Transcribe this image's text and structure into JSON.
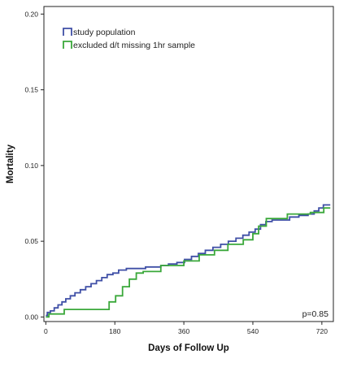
{
  "chart_data": {
    "type": "line",
    "step": true,
    "xlabel": "Days of Follow Up",
    "ylabel": "Mortality",
    "xlim": [
      -5,
      750
    ],
    "ylim": [
      -0.003,
      0.205
    ],
    "x_ticks": [
      {
        "value": 0,
        "label": "0"
      },
      {
        "value": 180,
        "label": "180"
      },
      {
        "value": 360,
        "label": "360"
      },
      {
        "value": 540,
        "label": "540"
      },
      {
        "value": 720,
        "label": "720"
      }
    ],
    "y_ticks": [
      {
        "value": 0.0,
        "label": "0.00"
      },
      {
        "value": 0.05,
        "label": "0.05"
      },
      {
        "value": 0.1,
        "label": "0.10"
      },
      {
        "value": 0.15,
        "label": "0.15"
      },
      {
        "value": 0.2,
        "label": "0.20"
      }
    ],
    "grid": false,
    "legend_position": "top-left",
    "annotation": "p=0.85",
    "series": [
      {
        "name": "study population",
        "color": "#3f4fa6",
        "points": [
          [
            0,
            0.001
          ],
          [
            4,
            0.003
          ],
          [
            12,
            0.004
          ],
          [
            22,
            0.006
          ],
          [
            32,
            0.008
          ],
          [
            42,
            0.01
          ],
          [
            52,
            0.012
          ],
          [
            64,
            0.014
          ],
          [
            76,
            0.016
          ],
          [
            90,
            0.018
          ],
          [
            104,
            0.02
          ],
          [
            118,
            0.022
          ],
          [
            132,
            0.024
          ],
          [
            146,
            0.026
          ],
          [
            160,
            0.028
          ],
          [
            175,
            0.029
          ],
          [
            190,
            0.031
          ],
          [
            210,
            0.032
          ],
          [
            235,
            0.032
          ],
          [
            260,
            0.033
          ],
          [
            282,
            0.033
          ],
          [
            300,
            0.034
          ],
          [
            320,
            0.035
          ],
          [
            342,
            0.036
          ],
          [
            362,
            0.038
          ],
          [
            380,
            0.04
          ],
          [
            398,
            0.042
          ],
          [
            416,
            0.044
          ],
          [
            436,
            0.046
          ],
          [
            456,
            0.048
          ],
          [
            476,
            0.05
          ],
          [
            496,
            0.052
          ],
          [
            514,
            0.054
          ],
          [
            530,
            0.056
          ],
          [
            546,
            0.058
          ],
          [
            560,
            0.061
          ],
          [
            574,
            0.063
          ],
          [
            590,
            0.064
          ],
          [
            612,
            0.064
          ],
          [
            636,
            0.066
          ],
          [
            660,
            0.067
          ],
          [
            684,
            0.068
          ],
          [
            700,
            0.07
          ],
          [
            712,
            0.072
          ],
          [
            724,
            0.074
          ],
          [
            742,
            0.074
          ]
        ]
      },
      {
        "name": "excluded d/t missing 1hr sample",
        "color": "#3aa83a",
        "points": [
          [
            0,
            0.0
          ],
          [
            8,
            0.002
          ],
          [
            28,
            0.002
          ],
          [
            48,
            0.005
          ],
          [
            150,
            0.005
          ],
          [
            165,
            0.01
          ],
          [
            182,
            0.014
          ],
          [
            200,
            0.02
          ],
          [
            218,
            0.025
          ],
          [
            236,
            0.029
          ],
          [
            254,
            0.03
          ],
          [
            285,
            0.03
          ],
          [
            300,
            0.034
          ],
          [
            345,
            0.034
          ],
          [
            360,
            0.037
          ],
          [
            400,
            0.041
          ],
          [
            440,
            0.044
          ],
          [
            475,
            0.048
          ],
          [
            515,
            0.051
          ],
          [
            540,
            0.055
          ],
          [
            555,
            0.06
          ],
          [
            575,
            0.065
          ],
          [
            615,
            0.065
          ],
          [
            630,
            0.068
          ],
          [
            665,
            0.068
          ],
          [
            690,
            0.069
          ],
          [
            710,
            0.069
          ],
          [
            725,
            0.072
          ],
          [
            742,
            0.072
          ]
        ]
      }
    ]
  }
}
